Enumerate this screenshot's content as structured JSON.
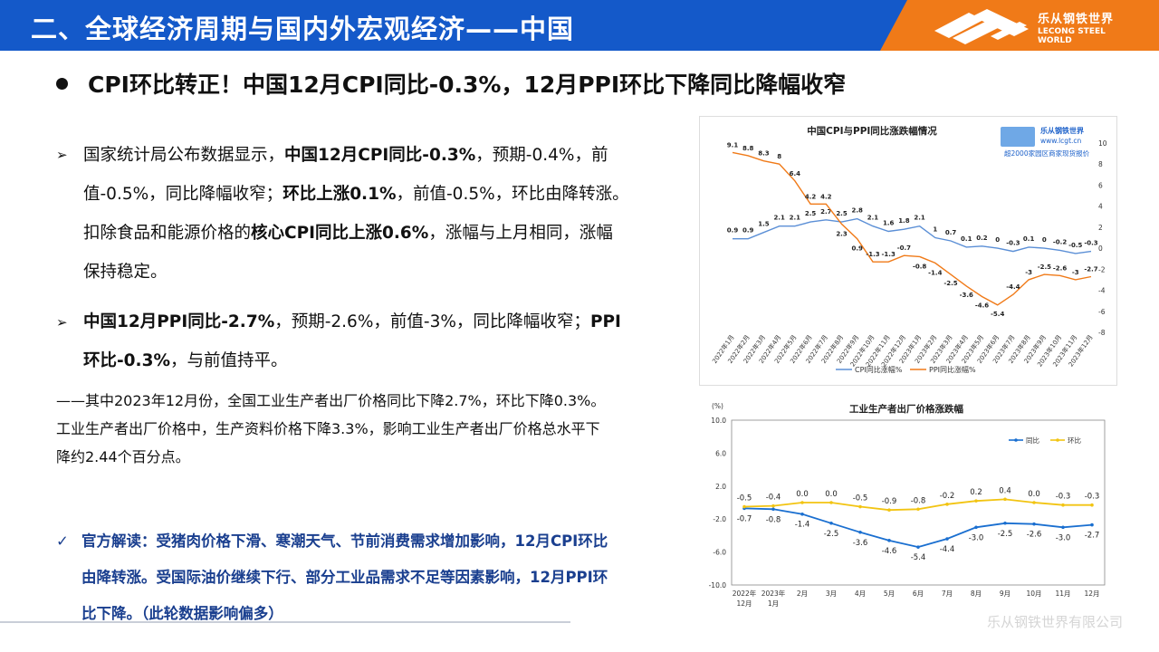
{
  "header": {
    "title": "二、全球经济周期与国内外宏观经济——中国",
    "logo_cn": "乐从钢铁世界",
    "logo_en": "LECONG STEEL WORLD"
  },
  "heading": "CPI环比转正！中国12月CPI同比-0.3%，12月PPI环比下降同比降幅收窄",
  "bullets": {
    "b1": {
      "l1a": "国家统计局公布数据显示，",
      "l1b": "中国12月CPI同比-0.3%",
      "l1c": "，预期-0.4%，前",
      "l2a": "值-0.5%，同比降幅收窄；",
      "l2b": "环比上涨0.1%",
      "l2c": "，前值-0.5%，环比由降转涨。",
      "l3a": "扣除食品和能源价格的",
      "l3b": "核心CPI同比上涨0.6%",
      "l3c": "，涨幅与上月相同，涨幅",
      "l4": "保持稳定。"
    },
    "b2": {
      "l1b": "中国12月PPI同比-2.7%",
      "l1c": "，预期-2.6%，前值-3%，同比降幅收窄；",
      "l1d": "PPI",
      "l2b": "环比-0.3%",
      "l2c": "，与前值持平。"
    }
  },
  "note": {
    "l1": "——其中2023年12月份，全国工业生产者出厂价格同比下降2.7%，环比下降0.3%。",
    "l2": "工业生产者出厂价格中，生产资料价格下降3.3%，影响工业生产者出厂价格总水平下",
    "l3": "降约2.44个百分点。"
  },
  "official": {
    "l1": "官方解读：受猪肉价格下滑、寒潮天气、节前消费需求增加影响，12月CPI环比",
    "l2": "由降转涨。受国际油价继续下行、部分工业品需求不足等因素影响，12月PPI环",
    "l3": "比下降。（此轮数据影响偏多）"
  },
  "watermark": "乐从钢铁世界有限公司",
  "colors": {
    "header_blue": "#1459c9",
    "header_orange": "#f07a18",
    "cpi": "#5b8fd6",
    "ppi": "#f07a18",
    "yoy": "#1a6fd0",
    "mom": "#f2c412",
    "official": "#1a3f8f"
  },
  "chart_data": [
    {
      "type": "line",
      "title": "中国CPI与PPI同比涨跌幅情况",
      "watermark": {
        "name": "乐从钢铁世界",
        "url": "www.lcgt.cn",
        "slogan": "超2000家园区商家现货报价"
      },
      "categories": [
        "2022年1月",
        "2022年2月",
        "2022年3月",
        "2022年4月",
        "2022年5月",
        "2022年6月",
        "2022年7月",
        "2022年8月",
        "2022年9月",
        "2022年10月",
        "2022年11月",
        "2022年12月",
        "2023年1月",
        "2023年2月",
        "2023年3月",
        "2023年4月",
        "2023年5月",
        "2023年6月",
        "2023年7月",
        "2023年8月",
        "2023年9月",
        "2023年10月",
        "2023年11月",
        "2023年12月"
      ],
      "series": [
        {
          "name": "CPI同比涨幅%",
          "values": [
            0.9,
            0.9,
            1.5,
            2.1,
            2.1,
            2.5,
            2.7,
            2.5,
            2.8,
            2.1,
            1.6,
            1.8,
            2.1,
            1,
            0.7,
            0.1,
            0.2,
            0,
            -0.3,
            0.1,
            0,
            -0.2,
            -0.5,
            -0.3
          ]
        },
        {
          "name": "PPI同比涨幅%",
          "values": [
            9.1,
            8.8,
            8.3,
            8,
            6.4,
            4.2,
            4.2,
            2.3,
            0.9,
            -1.3,
            -1.3,
            -0.7,
            -0.8,
            -1.4,
            -2.5,
            -3.6,
            -4.6,
            -5.4,
            -4.4,
            -3,
            -2.5,
            -2.6,
            -3,
            -2.7
          ]
        }
      ],
      "ylim": [
        -8,
        10
      ],
      "yticks": [
        10,
        8,
        6,
        4,
        2,
        0,
        -2,
        -4,
        -6,
        -8
      ],
      "legend": "bottom"
    },
    {
      "type": "line",
      "title": "工业生产者出厂价格涨跌幅",
      "ylabel": "(%)",
      "categories": [
        "2022年\n12月",
        "2023年\n1月",
        "2月",
        "3月",
        "4月",
        "5月",
        "6月",
        "7月",
        "8月",
        "9月",
        "10月",
        "11月",
        "12月"
      ],
      "series": [
        {
          "name": "同比",
          "values": [
            -0.7,
            -0.8,
            -1.4,
            -2.5,
            -3.6,
            -4.6,
            -5.4,
            -4.4,
            -3.0,
            -2.5,
            -2.6,
            -3.0,
            -2.7
          ]
        },
        {
          "name": "环比",
          "values": [
            -0.5,
            -0.4,
            0.0,
            0.0,
            -0.5,
            -0.9,
            -0.8,
            -0.2,
            0.2,
            0.4,
            0.0,
            -0.3,
            -0.3
          ]
        }
      ],
      "ylim": [
        -10,
        10
      ],
      "yticks": [
        "10.0",
        "6.0",
        "2.0",
        "-2.0",
        "-6.0",
        "-10.0"
      ],
      "legend": "top-right"
    }
  ]
}
